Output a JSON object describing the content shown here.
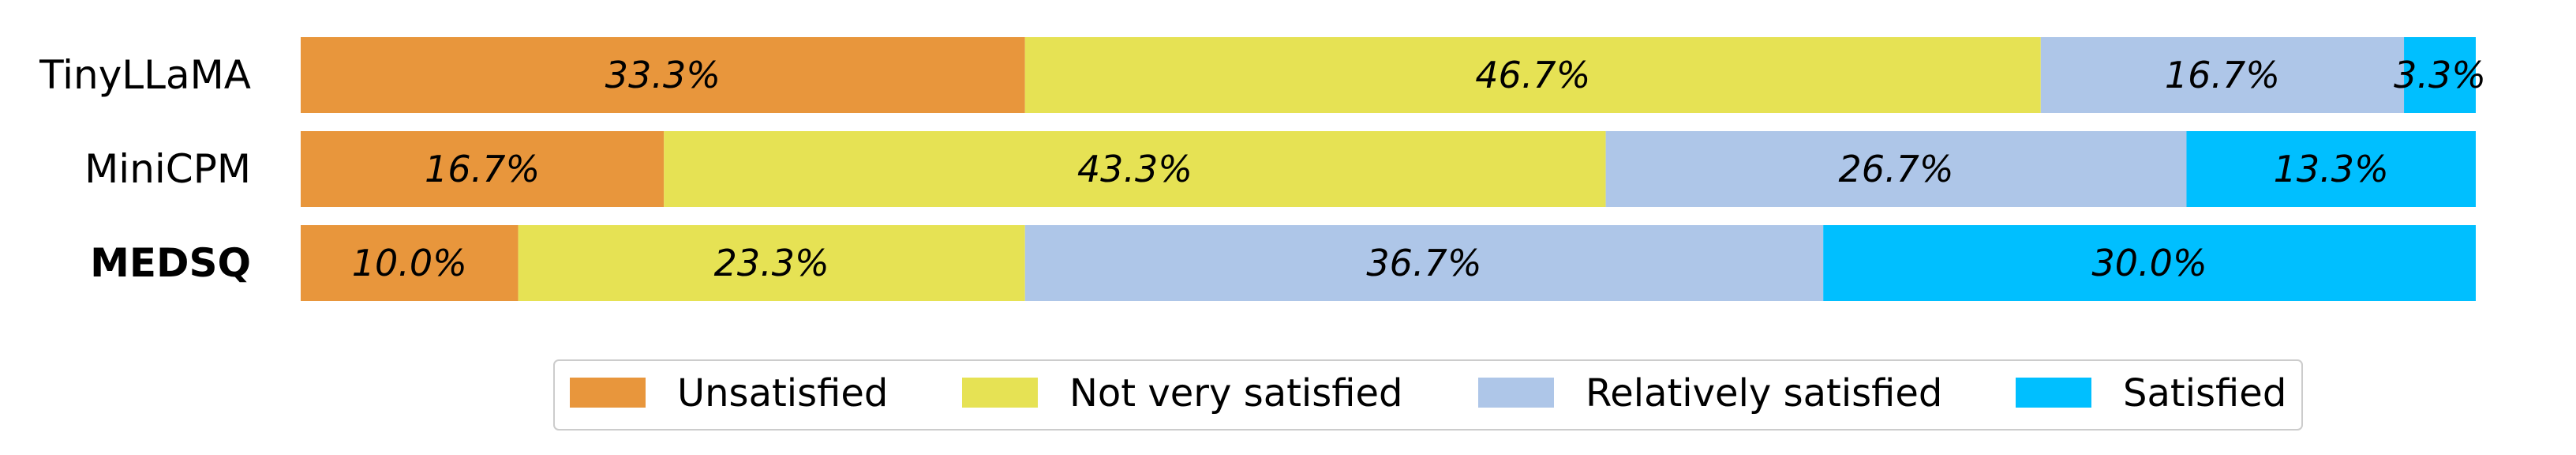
{
  "chart_data": {
    "type": "bar",
    "orientation": "horizontal",
    "stacked": true,
    "categories": [
      "TinyLLaMA",
      "MiniCPM",
      "MEDSQ"
    ],
    "bold_categories": [
      "MEDSQ"
    ],
    "series": [
      {
        "name": "Unsatisfied",
        "color": "#E8963C",
        "values": [
          33.3,
          16.7,
          10.0
        ],
        "labels": [
          "33.3%",
          "16.7%",
          "10.0%"
        ]
      },
      {
        "name": "Not very satisfied",
        "color": "#E6E254",
        "values": [
          46.7,
          43.3,
          23.3
        ],
        "labels": [
          "46.7%",
          "43.3%",
          "23.3%"
        ]
      },
      {
        "name": "Relatively satisfied",
        "color": "#AEC6E8",
        "values": [
          16.7,
          26.7,
          36.7
        ],
        "labels": [
          "16.7%",
          "26.7%",
          "36.7%"
        ]
      },
      {
        "name": "Satisfied",
        "color": "#00BFFF",
        "values": [
          3.3,
          13.3,
          30.0
        ],
        "labels": [
          "3.3%",
          "13.3%",
          "30.0%"
        ]
      }
    ],
    "xlim": [
      0,
      100
    ],
    "grid": false,
    "legend_position": "bottom-center"
  }
}
